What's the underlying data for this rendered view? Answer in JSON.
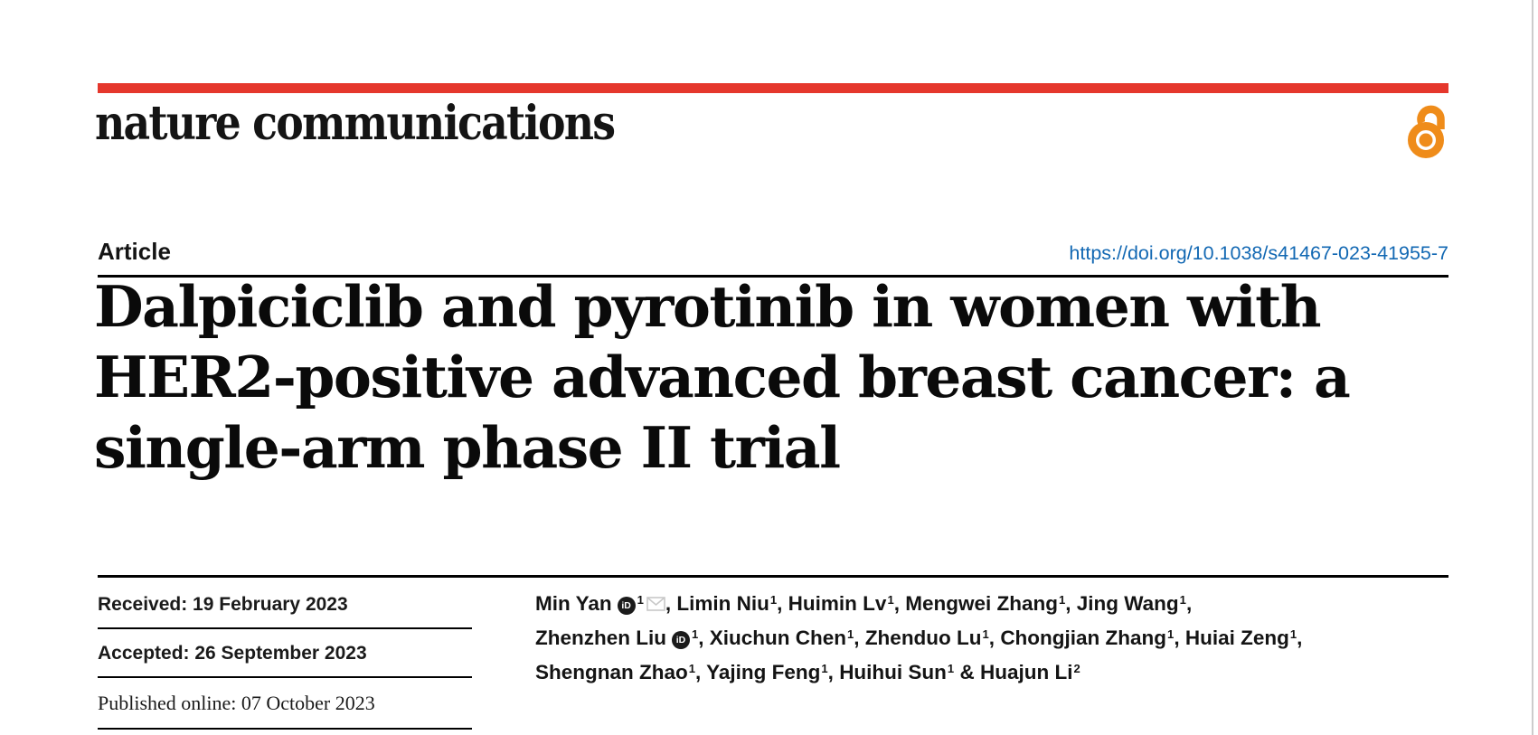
{
  "brand": {
    "journal": "nature communications"
  },
  "header": {
    "article_type": "Article",
    "doi": "https://doi.org/10.1038/s41467-023-41955-7"
  },
  "title": {
    "lines": [
      "Dalpiciclib and pyrotinib in women with",
      "HER2-positive advanced breast cancer: a",
      "single-arm phase II trial"
    ]
  },
  "dates": {
    "received": "Received: 19 February 2023",
    "accepted": "Accepted: 26 September 2023",
    "published": "Published online: 07 October 2023"
  },
  "authors": {
    "lines": [
      [
        {
          "text": "Min Yan",
          "orcid": true,
          "sup": "1",
          "mail": true,
          "sep": ", "
        },
        {
          "text": "Limin Niu",
          "sup": "1",
          "sep": ", "
        },
        {
          "text": "Huimin Lv",
          "sup": "1",
          "sep": ", "
        },
        {
          "text": "Mengwei Zhang",
          "sup": "1",
          "sep": ", "
        },
        {
          "text": "Jing Wang",
          "sup": "1",
          "sep": ","
        }
      ],
      [
        {
          "text": "Zhenzhen Liu",
          "orcid": true,
          "sup": "1",
          "sep": ", "
        },
        {
          "text": "Xiuchun Chen",
          "sup": "1",
          "sep": ", "
        },
        {
          "text": "Zhenduo Lu",
          "sup": "1",
          "sep": ", "
        },
        {
          "text": "Chongjian Zhang",
          "sup": "1",
          "sep": ", "
        },
        {
          "text": "Huiai Zeng",
          "sup": "1",
          "sep": ","
        }
      ],
      [
        {
          "text": "Shengnan Zhao",
          "sup": "1",
          "sep": ", "
        },
        {
          "text": "Yajing Feng",
          "sup": "1",
          "sep": ", "
        },
        {
          "text": "Huihui Sun",
          "sup": "1",
          "sep": " & "
        },
        {
          "text": "Huajun Li",
          "sup": "2",
          "sep": ""
        }
      ]
    ]
  },
  "icons": {
    "orcid_text": "iD"
  },
  "colors": {
    "brand_red": "#e5372c",
    "link_blue": "#1268b3",
    "oa_orange": "#ef8c1a",
    "border_gray": "#cccccc"
  }
}
